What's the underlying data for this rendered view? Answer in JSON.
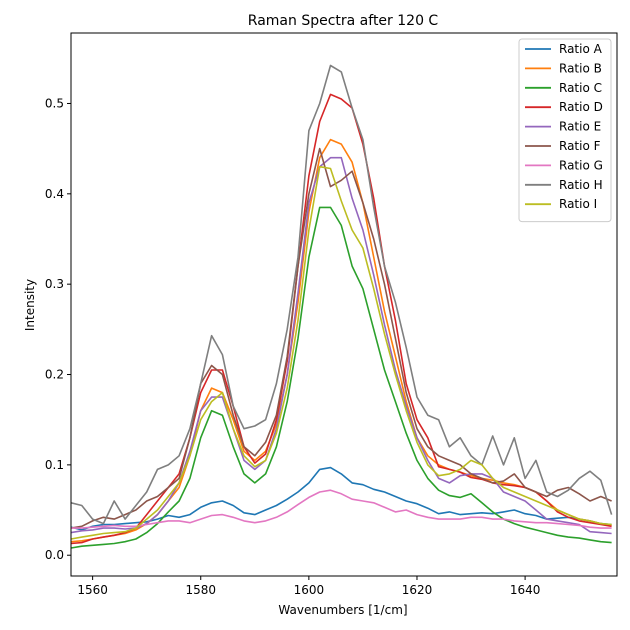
{
  "chart_data": {
    "type": "line",
    "title": "Raman Spectra after 120 C",
    "xlabel": "Wavenumbers [1/cm]",
    "ylabel": "Intensity",
    "xlim": [
      1556,
      1657
    ],
    "ylim": [
      -0.023,
      0.578
    ],
    "xticks": [
      1560,
      1580,
      1600,
      1620,
      1640
    ],
    "yticks": [
      0.0,
      0.1,
      0.2,
      0.3,
      0.4,
      0.5
    ],
    "ytick_labels": [
      "0.0",
      "0.1",
      "0.2",
      "0.3",
      "0.4",
      "0.5"
    ],
    "grid": false,
    "legend_position": "top-right",
    "x": [
      1556,
      1558,
      1560,
      1562,
      1564,
      1566,
      1568,
      1570,
      1572,
      1574,
      1576,
      1578,
      1580,
      1582,
      1584,
      1586,
      1588,
      1590,
      1592,
      1594,
      1596,
      1598,
      1600,
      1602,
      1604,
      1606,
      1608,
      1610,
      1612,
      1614,
      1616,
      1618,
      1620,
      1622,
      1624,
      1626,
      1628,
      1630,
      1632,
      1634,
      1636,
      1638,
      1640,
      1642,
      1644,
      1646,
      1648,
      1650,
      1652,
      1654,
      1656
    ],
    "series": [
      {
        "name": "Ratio A",
        "color": "#1f77b4",
        "values": [
          0.031,
          0.028,
          0.032,
          0.034,
          0.034,
          0.035,
          0.036,
          0.037,
          0.04,
          0.044,
          0.042,
          0.045,
          0.053,
          0.058,
          0.06,
          0.055,
          0.047,
          0.045,
          0.05,
          0.055,
          0.062,
          0.07,
          0.08,
          0.095,
          0.097,
          0.09,
          0.08,
          0.078,
          0.073,
          0.07,
          0.065,
          0.06,
          0.057,
          0.052,
          0.046,
          0.048,
          0.045,
          0.046,
          0.047,
          0.046,
          0.048,
          0.05,
          0.046,
          0.044,
          0.04,
          0.041,
          0.042,
          0.04,
          0.038,
          0.035,
          0.034
        ]
      },
      {
        "name": "Ratio B",
        "color": "#ff7f0e",
        "values": [
          0.015,
          0.016,
          0.018,
          0.02,
          0.022,
          0.024,
          0.028,
          0.035,
          0.045,
          0.06,
          0.075,
          0.11,
          0.16,
          0.185,
          0.18,
          0.15,
          0.115,
          0.105,
          0.115,
          0.145,
          0.2,
          0.28,
          0.38,
          0.44,
          0.46,
          0.455,
          0.435,
          0.39,
          0.33,
          0.27,
          0.22,
          0.17,
          0.13,
          0.11,
          0.1,
          0.095,
          0.092,
          0.088,
          0.085,
          0.083,
          0.08,
          0.078,
          0.075,
          0.07,
          0.06,
          0.05,
          0.045,
          0.04,
          0.038,
          0.035,
          0.033
        ]
      },
      {
        "name": "Ratio C",
        "color": "#2ca02c",
        "values": [
          0.008,
          0.01,
          0.011,
          0.012,
          0.013,
          0.015,
          0.018,
          0.025,
          0.035,
          0.048,
          0.06,
          0.085,
          0.13,
          0.16,
          0.155,
          0.12,
          0.09,
          0.08,
          0.09,
          0.12,
          0.17,
          0.24,
          0.33,
          0.385,
          0.385,
          0.365,
          0.32,
          0.295,
          0.25,
          0.205,
          0.17,
          0.135,
          0.105,
          0.085,
          0.072,
          0.066,
          0.064,
          0.068,
          0.058,
          0.048,
          0.04,
          0.035,
          0.031,
          0.028,
          0.025,
          0.022,
          0.02,
          0.019,
          0.017,
          0.015,
          0.014
        ]
      },
      {
        "name": "Ratio D",
        "color": "#d62728",
        "values": [
          0.013,
          0.014,
          0.018,
          0.02,
          0.022,
          0.025,
          0.03,
          0.045,
          0.06,
          0.075,
          0.09,
          0.13,
          0.18,
          0.205,
          0.205,
          0.165,
          0.12,
          0.102,
          0.112,
          0.15,
          0.215,
          0.32,
          0.42,
          0.48,
          0.51,
          0.505,
          0.495,
          0.455,
          0.395,
          0.32,
          0.26,
          0.19,
          0.15,
          0.13,
          0.098,
          0.095,
          0.092,
          0.086,
          0.084,
          0.08,
          0.078,
          0.077,
          0.075,
          0.07,
          0.06,
          0.048,
          0.042,
          0.038,
          0.036,
          0.034,
          0.032
        ]
      },
      {
        "name": "Ratio E",
        "color": "#9467bd",
        "values": [
          0.025,
          0.027,
          0.028,
          0.03,
          0.03,
          0.029,
          0.03,
          0.035,
          0.045,
          0.06,
          0.08,
          0.115,
          0.16,
          0.175,
          0.175,
          0.14,
          0.105,
          0.095,
          0.105,
          0.14,
          0.2,
          0.29,
          0.39,
          0.43,
          0.44,
          0.44,
          0.395,
          0.36,
          0.31,
          0.255,
          0.205,
          0.165,
          0.13,
          0.105,
          0.085,
          0.08,
          0.088,
          0.09,
          0.09,
          0.085,
          0.07,
          0.065,
          0.06,
          0.05,
          0.04,
          0.038,
          0.036,
          0.034,
          0.026,
          0.025,
          0.024
        ]
      },
      {
        "name": "Ratio F",
        "color": "#8c564b",
        "values": [
          0.03,
          0.032,
          0.038,
          0.042,
          0.04,
          0.045,
          0.05,
          0.06,
          0.065,
          0.075,
          0.085,
          0.13,
          0.19,
          0.21,
          0.2,
          0.155,
          0.12,
          0.11,
          0.125,
          0.155,
          0.22,
          0.32,
          0.4,
          0.45,
          0.408,
          0.415,
          0.425,
          0.39,
          0.35,
          0.3,
          0.24,
          0.18,
          0.14,
          0.12,
          0.11,
          0.105,
          0.1,
          0.09,
          0.085,
          0.08,
          0.082,
          0.09,
          0.075,
          0.07,
          0.065,
          0.072,
          0.075,
          0.068,
          0.06,
          0.065,
          0.06
        ]
      },
      {
        "name": "Ratio G",
        "color": "#e377c2",
        "values": [
          0.03,
          0.03,
          0.031,
          0.032,
          0.033,
          0.032,
          0.032,
          0.034,
          0.036,
          0.038,
          0.038,
          0.036,
          0.04,
          0.044,
          0.045,
          0.042,
          0.038,
          0.036,
          0.038,
          0.042,
          0.048,
          0.056,
          0.064,
          0.07,
          0.072,
          0.068,
          0.062,
          0.06,
          0.058,
          0.053,
          0.048,
          0.05,
          0.045,
          0.042,
          0.04,
          0.04,
          0.04,
          0.042,
          0.042,
          0.04,
          0.04,
          0.038,
          0.037,
          0.036,
          0.036,
          0.035,
          0.034,
          0.033,
          0.031,
          0.03,
          0.03
        ]
      },
      {
        "name": "Ratio H",
        "color": "#7f7f7f",
        "values": [
          0.058,
          0.055,
          0.04,
          0.035,
          0.06,
          0.04,
          0.055,
          0.07,
          0.095,
          0.1,
          0.11,
          0.14,
          0.19,
          0.243,
          0.222,
          0.165,
          0.14,
          0.143,
          0.15,
          0.19,
          0.25,
          0.33,
          0.47,
          0.5,
          0.542,
          0.535,
          0.495,
          0.46,
          0.385,
          0.32,
          0.28,
          0.23,
          0.175,
          0.155,
          0.15,
          0.12,
          0.13,
          0.11,
          0.1,
          0.132,
          0.1,
          0.13,
          0.085,
          0.105,
          0.07,
          0.065,
          0.072,
          0.085,
          0.093,
          0.083,
          0.045
        ]
      },
      {
        "name": "Ratio I",
        "color": "#bcbd22",
        "values": [
          0.018,
          0.02,
          0.022,
          0.024,
          0.025,
          0.026,
          0.03,
          0.04,
          0.05,
          0.065,
          0.08,
          0.11,
          0.15,
          0.17,
          0.18,
          0.14,
          0.11,
          0.098,
          0.105,
          0.135,
          0.185,
          0.26,
          0.36,
          0.43,
          0.428,
          0.392,
          0.36,
          0.34,
          0.295,
          0.245,
          0.2,
          0.16,
          0.125,
          0.1,
          0.088,
          0.09,
          0.095,
          0.105,
          0.1,
          0.085,
          0.075,
          0.07,
          0.065,
          0.06,
          0.055,
          0.05,
          0.045,
          0.04,
          0.038,
          0.035,
          0.034
        ]
      }
    ]
  }
}
